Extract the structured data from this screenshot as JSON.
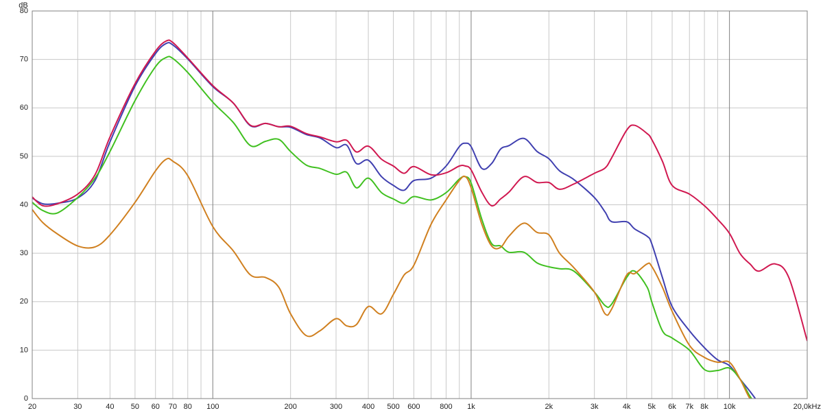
{
  "chart_data": {
    "type": "line",
    "y_label": "dB",
    "x_scale": "log",
    "grid": true,
    "x": [
      20,
      22,
      25,
      30,
      35,
      40,
      50,
      60,
      66,
      70,
      80,
      100,
      120,
      140,
      160,
      180,
      200,
      230,
      260,
      300,
      330,
      360,
      400,
      450,
      500,
      550,
      600,
      700,
      800,
      900,
      950,
      1000,
      1100,
      1200,
      1300,
      1400,
      1600,
      1800,
      2000,
      2200,
      2500,
      3000,
      3300,
      3500,
      4000,
      4300,
      4800,
      5000,
      5500,
      6000,
      7000,
      8000,
      9000,
      10000,
      11000,
      12000,
      13000,
      15000,
      17000,
      20000
    ],
    "series": [
      {
        "color": "#4040b0",
        "values": [
          41.4,
          40.2,
          40.3,
          41.4,
          45,
          53,
          64.5,
          71.2,
          73.3,
          73,
          70.1,
          64.4,
          61,
          56.3,
          56.8,
          56.1,
          56,
          54.5,
          53.8,
          51.8,
          52.3,
          48.5,
          49.2,
          45.8,
          44,
          43,
          45,
          45.5,
          48,
          52,
          52.7,
          52,
          47.5,
          48.5,
          51.5,
          52.2,
          53.7,
          51,
          49.5,
          47,
          45.2,
          41.5,
          38.5,
          36.5,
          36.5,
          35,
          33.5,
          32,
          25,
          19,
          14,
          10.5,
          8,
          6.8,
          4,
          1.5,
          -1,
          null,
          null,
          null
        ]
      },
      {
        "color": "#40c020",
        "values": [
          40.5,
          38.8,
          38.3,
          41.5,
          45.5,
          51,
          61.5,
          68.5,
          70.4,
          70.2,
          67.3,
          61.2,
          57,
          52.2,
          53.1,
          53.5,
          51,
          48.2,
          47.5,
          46.3,
          46.7,
          43.5,
          45.5,
          42.5,
          41.2,
          40.3,
          41.7,
          41,
          42.5,
          45.3,
          45.8,
          44.5,
          37,
          32,
          31.5,
          30.2,
          30.2,
          28,
          27.2,
          26.8,
          26.3,
          22,
          19.2,
          19.5,
          25,
          26.3,
          23,
          20,
          14,
          12.5,
          10,
          6,
          5.8,
          6.3,
          4,
          0.5,
          -2,
          null,
          null,
          null
        ]
      },
      {
        "color": "#d08020",
        "values": [
          39,
          36.3,
          34,
          31.5,
          31.3,
          33.8,
          40.5,
          47,
          49.4,
          49,
          46,
          35.5,
          30.5,
          25.5,
          25,
          23,
          17.5,
          13,
          14,
          16.5,
          15,
          15.3,
          19,
          17.5,
          21.5,
          25.5,
          27.5,
          36,
          41,
          45,
          45.8,
          43.5,
          36,
          31.5,
          31.2,
          33.5,
          36.2,
          34.3,
          33.8,
          30,
          27,
          22,
          17.5,
          18.5,
          25.5,
          25.8,
          27.8,
          27.3,
          23,
          18,
          11,
          8.5,
          7.5,
          7.5,
          4,
          0,
          -2,
          null,
          null,
          null
        ]
      },
      {
        "color": "#d01850",
        "values": [
          41.6,
          39.8,
          40.2,
          42.2,
          46.2,
          54,
          65,
          71.7,
          73.8,
          73.5,
          70.3,
          64.6,
          61,
          56.4,
          56.8,
          56.1,
          56.2,
          54.7,
          54,
          53,
          53.3,
          50.9,
          52.1,
          49.4,
          48,
          46.5,
          47.9,
          46.2,
          46.6,
          48,
          48,
          47.2,
          42.6,
          39.8,
          41.2,
          42.6,
          45.8,
          44.6,
          44.6,
          43.2,
          44.3,
          46.5,
          47.6,
          49.7,
          55.4,
          56.4,
          54.7,
          53.5,
          49,
          44,
          42.2,
          39.8,
          37,
          34.1,
          29.9,
          27.8,
          26.3,
          27.8,
          24.9,
          11.9
        ]
      }
    ],
    "xlim": [
      20,
      20000
    ],
    "ylim": [
      0,
      80
    ],
    "yticks": [
      0,
      10,
      20,
      30,
      40,
      50,
      60,
      70,
      80
    ],
    "xticks": [
      20,
      30,
      40,
      50,
      60,
      70,
      80,
      {
        "value": 90,
        "label": null
      },
      100,
      200,
      300,
      400,
      500,
      600,
      {
        "value": 700,
        "label": null
      },
      800,
      {
        "value": 900,
        "label": null
      },
      {
        "value": 1000,
        "label": "1k"
      },
      {
        "value": 2000,
        "label": "2k"
      },
      {
        "value": 3000,
        "label": "3k"
      },
      {
        "value": 4000,
        "label": "4k"
      },
      {
        "value": 5000,
        "label": "5k"
      },
      {
        "value": 6000,
        "label": "6k"
      },
      {
        "value": 7000,
        "label": "7k"
      },
      {
        "value": 8000,
        "label": "8k"
      },
      {
        "value": 9000,
        "label": null
      },
      {
        "value": 10000,
        "label": "10k"
      },
      {
        "value": 20000,
        "label": "20,0kHz"
      }
    ]
  }
}
